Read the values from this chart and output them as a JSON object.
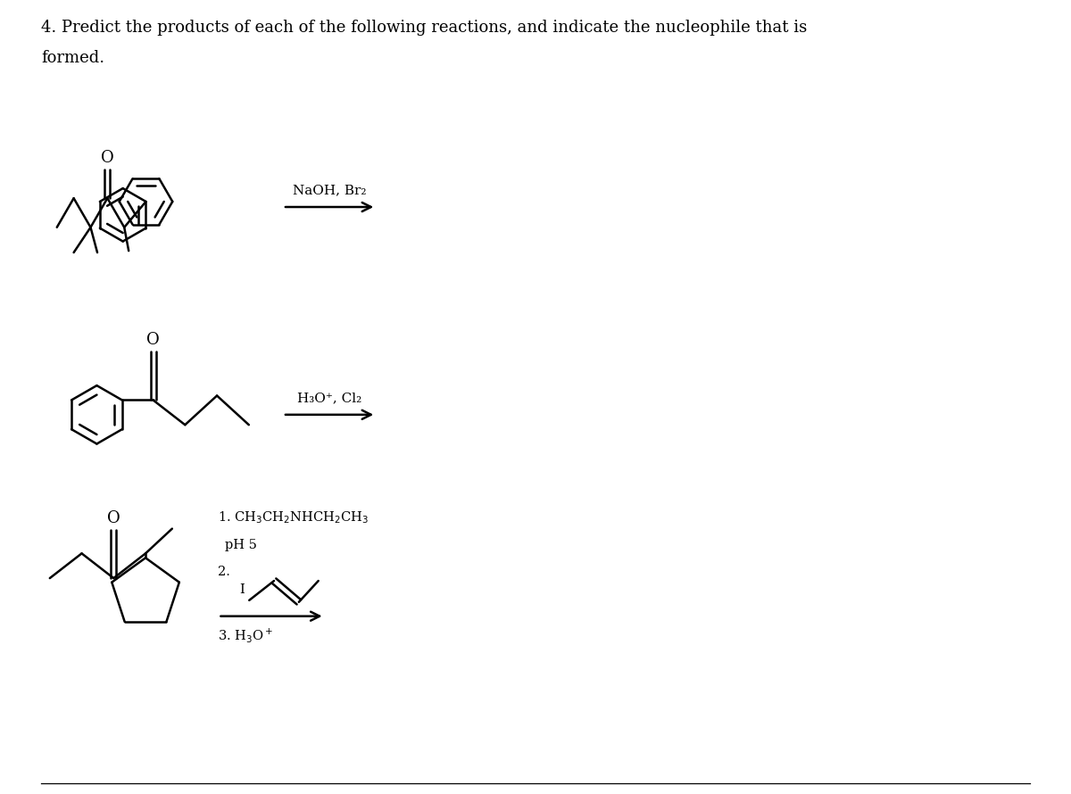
{
  "title_line1": "4. Predict the products of each of the following reactions, and indicate the nucleophile that is",
  "title_line2": "formed.",
  "background_color": "#ffffff",
  "text_color": "#000000",
  "title_fontsize": 13.0,
  "reaction1_reagent": "NaOH, Br₂",
  "reaction2_reagent_top": "H₃O⁺, Cl₂",
  "reaction3_line1": "1. CH₃CH₂NHCH₂CH₃",
  "reaction3_line2": "   pH 5",
  "reaction3_line3": "2.",
  "reaction3_line4": "3. H₃O⁺",
  "line_color": "#000000",
  "line_width": 1.8
}
